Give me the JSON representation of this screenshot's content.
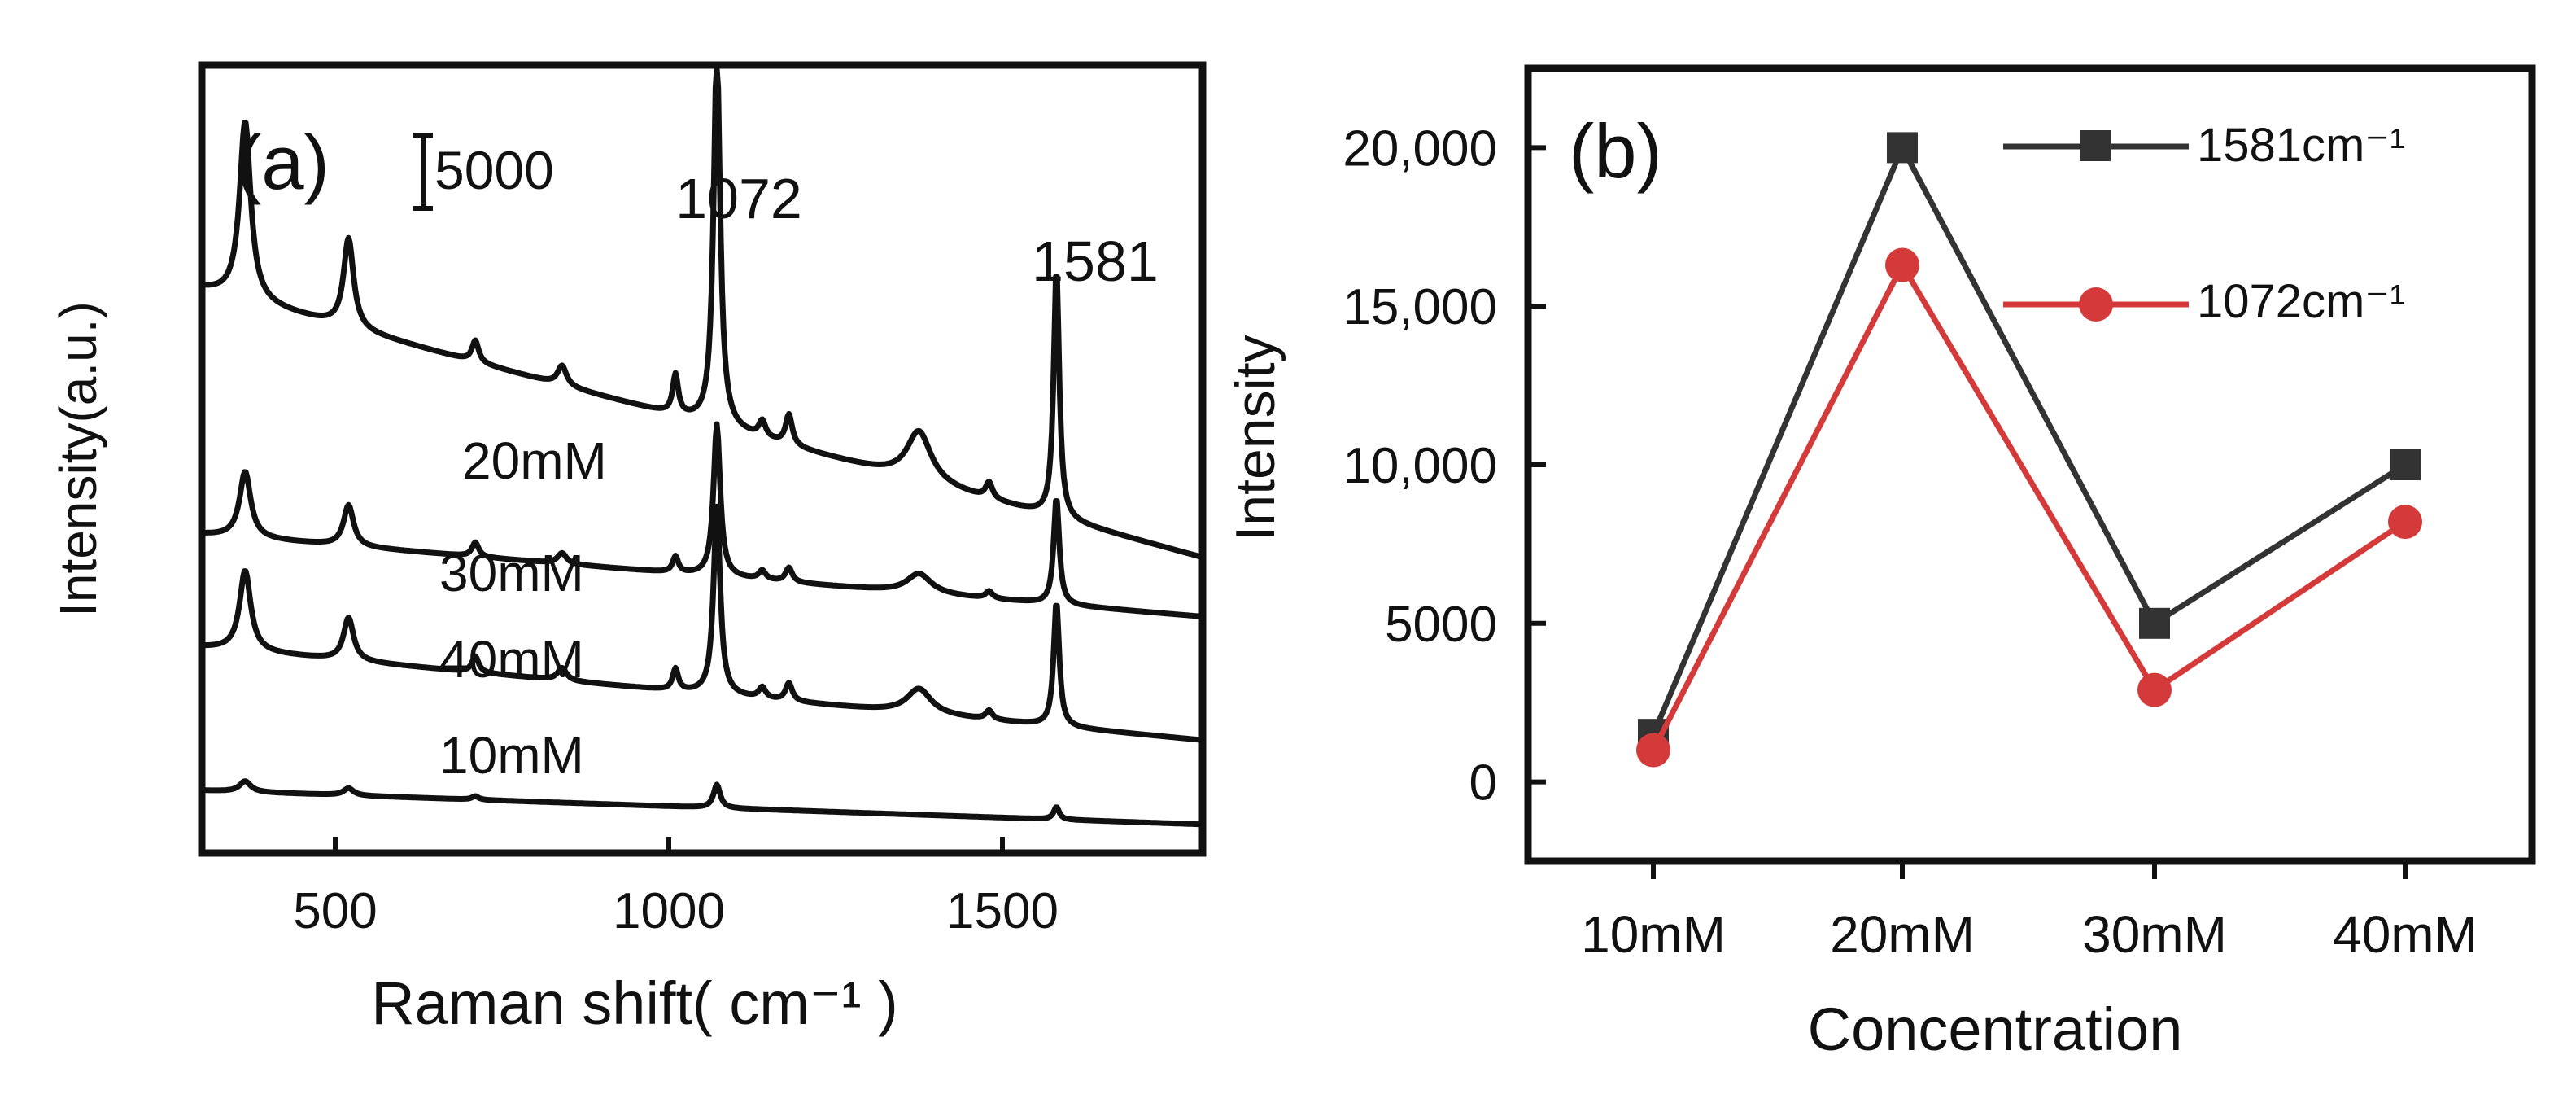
{
  "chart_data": [
    {
      "panel_label": "(a)",
      "type": "line",
      "title": "",
      "xlabel": "Raman shift( cm⁻¹ )",
      "ylabel": "Intensity(a.u.)",
      "xlim": [
        300,
        1800
      ],
      "x_ticks": [
        500,
        1000,
        1500
      ],
      "scale_bar_label": "5000",
      "scale_bar_value": 5000,
      "peak_labels": [
        {
          "text": "1072",
          "x": 1072
        },
        {
          "text": "1581",
          "x": 1581
        }
      ],
      "stacked_offsets_note": "spectra vertically offset",
      "series": [
        {
          "name": "20mM",
          "offset": 21000,
          "baseline": [
            [
              300,
              10500
            ],
            [
              1800,
              -4500
            ]
          ],
          "peaks": [
            [
              365,
              10000,
              10
            ],
            [
              520,
              5000,
              9
            ],
            [
              710,
              1200,
              6
            ],
            [
              840,
              1100,
              8
            ],
            [
              1010,
              2200,
              5
            ],
            [
              1072,
              21000,
              6
            ],
            [
              1140,
              900,
              6
            ],
            [
              1180,
              1700,
              6
            ],
            [
              1375,
              2800,
              22
            ],
            [
              1480,
              900,
              6
            ],
            [
              1581,
              14000,
              5
            ]
          ]
        },
        {
          "name": "30mM",
          "offset": 16000,
          "baseline": [
            [
              300,
              1800
            ],
            [
              1800,
              -2800
            ]
          ],
          "peaks": [
            [
              365,
              3700,
              10
            ],
            [
              520,
              2300,
              9
            ],
            [
              710,
              800,
              6
            ],
            [
              840,
              600,
              8
            ],
            [
              1010,
              900,
              5
            ],
            [
              1072,
              8500,
              6
            ],
            [
              1140,
              500,
              6
            ],
            [
              1180,
              800,
              6
            ],
            [
              1375,
              1100,
              22
            ],
            [
              1480,
              400,
              6
            ],
            [
              1581,
              6000,
              5
            ]
          ]
        },
        {
          "name": "40mM",
          "offset": 9500,
          "baseline": [
            [
              300,
              2000
            ],
            [
              1800,
              -3200
            ]
          ],
          "peaks": [
            [
              365,
              4500,
              10
            ],
            [
              520,
              2400,
              9
            ],
            [
              710,
              900,
              6
            ],
            [
              840,
              700,
              8
            ],
            [
              1010,
              1200,
              5
            ],
            [
              1072,
              10500,
              6
            ],
            [
              1140,
              600,
              6
            ],
            [
              1180,
              1000,
              6
            ],
            [
              1375,
              1400,
              22
            ],
            [
              1480,
              500,
              6
            ],
            [
              1581,
              7000,
              5
            ]
          ]
        },
        {
          "name": "10mM",
          "offset": 3000,
          "baseline": [
            [
              300,
              500
            ],
            [
              1800,
              -1400
            ]
          ],
          "peaks": [
            [
              365,
              600,
              10
            ],
            [
              520,
              400,
              9
            ],
            [
              710,
              200,
              6
            ],
            [
              1072,
              1300,
              6
            ],
            [
              1581,
              700,
              5
            ]
          ]
        }
      ],
      "ylim": [
        0,
        44000
      ]
    },
    {
      "panel_label": "(b)",
      "type": "line",
      "title": "",
      "xlabel": "Concentration",
      "ylabel": "Intensity",
      "categories": [
        "10mM",
        "20mM",
        "30mM",
        "40mM"
      ],
      "ylim": [
        -2500,
        22500
      ],
      "y_ticks": [
        0,
        5000,
        10000,
        15000,
        20000
      ],
      "y_tick_labels": [
        "0",
        "5000",
        "10,000",
        "15,000",
        "20,000"
      ],
      "legend_position": "top-right",
      "series": [
        {
          "name": "1581cm⁻¹",
          "values": [
            1500,
            20000,
            5000,
            10000
          ],
          "color": "#333333",
          "marker": "square"
        },
        {
          "name": "1072cm⁻¹",
          "values": [
            1000,
            16300,
            2900,
            8200
          ],
          "color": "#d43a3a",
          "marker": "circle"
        }
      ]
    }
  ]
}
